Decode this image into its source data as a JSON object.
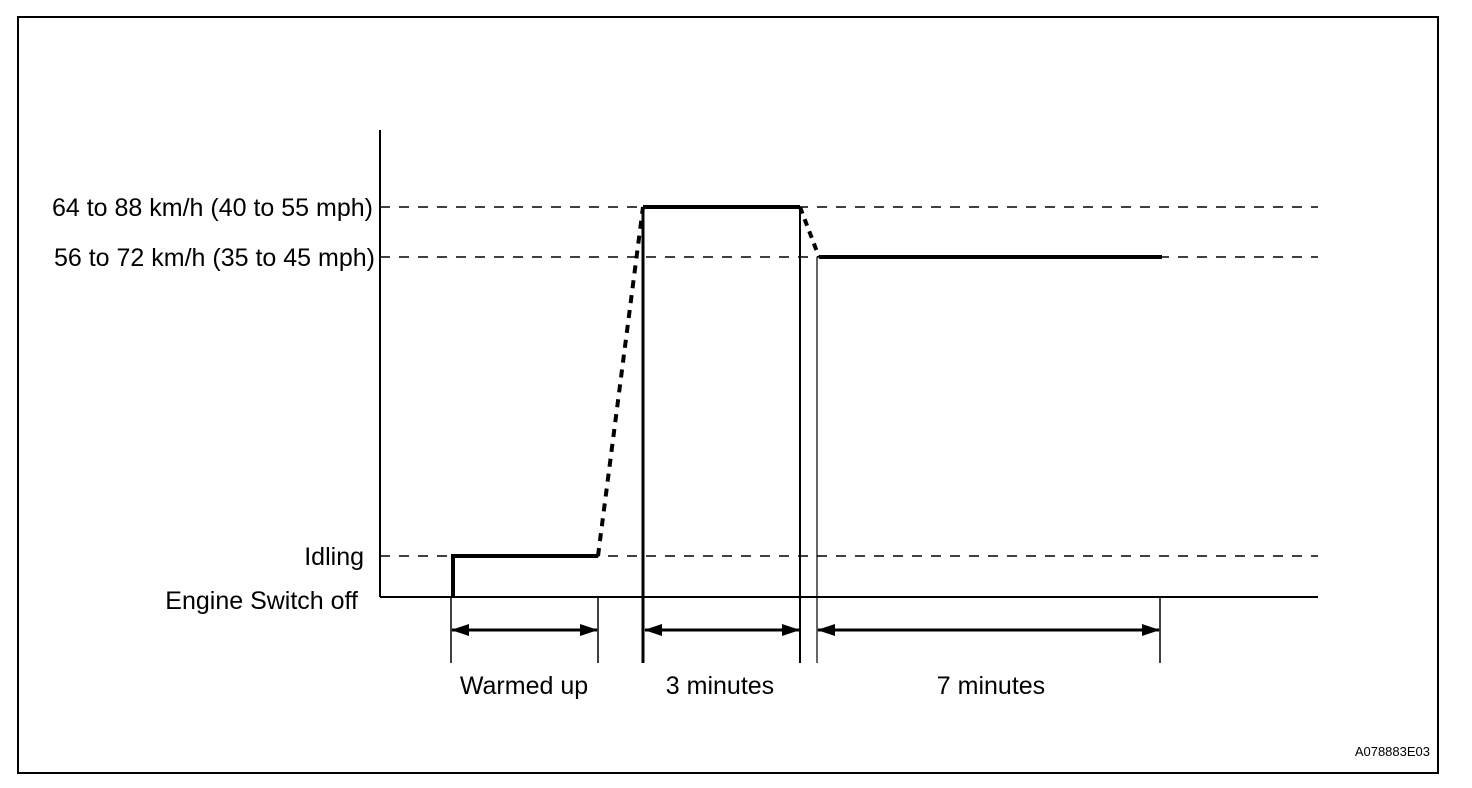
{
  "diagram": {
    "speed_labels": {
      "high": "64 to 88 km/h (40 to 55 mph)",
      "mid": "56 to 72 km/h (35 to 45 mph)",
      "idling": "Idling",
      "off": "Engine Switch off"
    },
    "phases": {
      "warmed_up": "Warmed up",
      "three_minutes": "3 minutes",
      "seven_minutes": "7 minutes"
    },
    "figure_code": "A078883E03",
    "colors": {
      "line": "#000000",
      "background": "#ffffff"
    }
  }
}
